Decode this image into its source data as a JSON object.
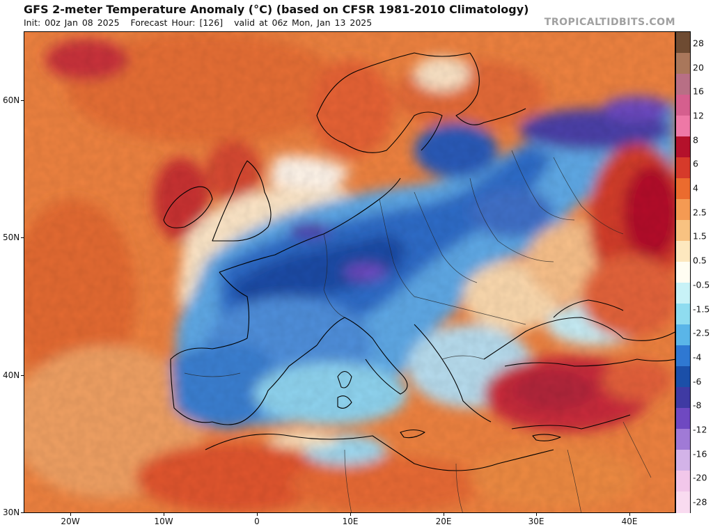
{
  "header": {
    "title": "GFS 2-meter Temperature Anomaly (°C) (based on CFSR 1981-2010 Climatology)",
    "init": "Init: 00z Jan 08 2025",
    "forecast_hour": "Forecast Hour: [126]",
    "valid": "valid at 06z Mon, Jan 13 2025",
    "brand": "TROPICALTIDBITS.COM"
  },
  "map": {
    "latitude_labels": [
      "60N",
      "50N",
      "40N",
      "30N"
    ],
    "longitude_labels": [
      "20W",
      "10W",
      "0",
      "10E",
      "20E",
      "30E",
      "40E"
    ]
  },
  "colorbar": {
    "labels": [
      "28",
      "20",
      "16",
      "12",
      "8",
      "6",
      "4",
      "2.5",
      "1.5",
      "0.5",
      "-0.5",
      "-1.5",
      "-2.5",
      "-4",
      "-6",
      "-8",
      "-12",
      "-16",
      "-20",
      "-28"
    ],
    "colors": [
      "#6e4b32",
      "#a9775b",
      "#b86f85",
      "#d55f8e",
      "#ee78a6",
      "#b4112b",
      "#d63a2a",
      "#eb6b2e",
      "#f49a53",
      "#f8c281",
      "#fde8bf",
      "#fffdf2",
      "#c8f2f7",
      "#8fdcf0",
      "#5ab5e8",
      "#2f78d2",
      "#1b4fa8",
      "#3f3aa3",
      "#6f49c1",
      "#a07ad6",
      "#d3b3e8",
      "#f2c7ea",
      "#f9dbf0"
    ]
  },
  "colors": {
    "ocean_warm": "#ef8a46",
    "ocean_neutral": "#ffffff",
    "cold_core": "#1b4fa8",
    "very_cold": "#6f49c1",
    "warm_core": "#b4112b"
  }
}
